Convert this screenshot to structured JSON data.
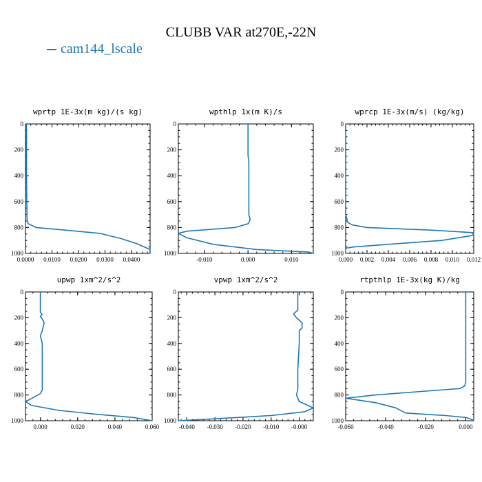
{
  "figure": {
    "title": "CLUBB VAR at270E,-22N",
    "legend": [
      {
        "name": "cam144_lscale",
        "color": "#1f77b4"
      }
    ]
  },
  "chart_data": [
    {
      "type": "line",
      "title": "wprtp  1E-3x(m kg)/(s kg)",
      "xlim": [
        0,
        0.047
      ],
      "ylim": [
        1000,
        0
      ],
      "x_ticks": [
        "0.0000",
        "0.0100",
        "0.0200",
        "0.0300",
        "0.0400"
      ],
      "x_tick_values": [
        0,
        0.01,
        0.02,
        0.03,
        0.04
      ],
      "y_ticks": [
        "0",
        "200",
        "400",
        "600",
        "800",
        "1000"
      ],
      "series": [
        {
          "name": "cam144_lscale",
          "color": "#1f77b4",
          "points": [
            [
              0.0004,
              0
            ],
            [
              0.0004,
              200
            ],
            [
              0.0004,
              400
            ],
            [
              0.0005,
              600
            ],
            [
              0.0006,
              740
            ],
            [
              0.001,
              770
            ],
            [
              0.004,
              800
            ],
            [
              0.015,
              820
            ],
            [
              0.028,
              845
            ],
            [
              0.036,
              885
            ],
            [
              0.042,
              925
            ],
            [
              0.047,
              970
            ],
            [
              0.047,
              1000
            ]
          ]
        }
      ]
    },
    {
      "type": "line",
      "title": "wpthlp  1x(m K)/s",
      "xlim": [
        -0.016,
        0.015
      ],
      "ylim": [
        1000,
        0
      ],
      "x_ticks": [
        "-0.010",
        "0.000",
        "0.010"
      ],
      "x_tick_values": [
        -0.01,
        0,
        0.01
      ],
      "y_ticks": [
        "0",
        "200",
        "400",
        "600",
        "800",
        "1000"
      ],
      "series": [
        {
          "name": "cam144_lscale",
          "color": "#1f77b4",
          "points": [
            [
              0.0,
              0
            ],
            [
              0.0,
              100
            ],
            [
              0.0,
              180
            ],
            [
              0.0,
              240
            ],
            [
              0.0002,
              300
            ],
            [
              0.0002,
              420
            ],
            [
              0.0002,
              600
            ],
            [
              0.0002,
              700
            ],
            [
              0.0005,
              740
            ],
            [
              0.0001,
              770
            ],
            [
              -0.003,
              800
            ],
            [
              -0.01,
              818
            ],
            [
              -0.014,
              828
            ],
            [
              -0.016,
              845
            ],
            [
              -0.014,
              880
            ],
            [
              -0.008,
              930
            ],
            [
              0.002,
              970
            ],
            [
              0.014,
              990
            ],
            [
              0.015,
              1000
            ]
          ]
        }
      ]
    },
    {
      "type": "line",
      "title": "wprcp  1E-3x(m/s) (kg/kg)",
      "xlim": [
        0,
        0.012
      ],
      "ylim": [
        1000,
        0
      ],
      "x_ticks": [
        "0.000",
        "0.002",
        "0.004",
        "0.006",
        "0.008",
        "0.010",
        "0.012"
      ],
      "x_tick_values": [
        0,
        0.002,
        0.004,
        0.006,
        0.008,
        0.01,
        0.012
      ],
      "y_ticks": [
        "0",
        "200",
        "400",
        "600",
        "800",
        "1000"
      ],
      "series": [
        {
          "name": "cam144_lscale",
          "color": "#1f77b4",
          "points": [
            [
              0,
              0
            ],
            [
              0,
              600
            ],
            [
              0,
              700
            ],
            [
              0.0002,
              760
            ],
            [
              0.0006,
              780
            ],
            [
              0.002,
              800
            ],
            [
              0.008,
              820
            ],
            [
              0.012,
              840
            ],
            [
              0.012,
              860
            ],
            [
              0.009,
              900
            ],
            [
              0.004,
              930
            ],
            [
              0.0008,
              950
            ],
            [
              0,
              960
            ],
            [
              0,
              1000
            ]
          ]
        }
      ]
    },
    {
      "type": "line",
      "title": "upwp  1xm^2/s^2",
      "xlim": [
        -0.008,
        0.06
      ],
      "ylim": [
        1000,
        0
      ],
      "x_ticks": [
        "0.000",
        "0.020",
        "0.040",
        "0.060"
      ],
      "x_tick_values": [
        0,
        0.02,
        0.04,
        0.06
      ],
      "y_ticks": [
        "0",
        "200",
        "400",
        "600",
        "800",
        "1000"
      ],
      "series": [
        {
          "name": "cam144_lscale",
          "color": "#1f77b4",
          "points": [
            [
              0,
              0
            ],
            [
              0,
              160
            ],
            [
              0.001,
              175
            ],
            [
              0,
              190
            ],
            [
              0.001,
              210
            ],
            [
              0.002,
              240
            ],
            [
              0.001,
              300
            ],
            [
              0,
              340
            ],
            [
              0.001,
              400
            ],
            [
              0.001,
              600
            ],
            [
              0.001,
              760
            ],
            [
              0,
              790
            ],
            [
              -0.005,
              830
            ],
            [
              -0.008,
              850
            ],
            [
              -0.005,
              880
            ],
            [
              0.01,
              920
            ],
            [
              0.03,
              950
            ],
            [
              0.05,
              975
            ],
            [
              0.06,
              1000
            ]
          ]
        }
      ]
    },
    {
      "type": "line",
      "title": "vpwp  1xm^2/s^2",
      "xlim": [
        -0.043,
        0.005
      ],
      "ylim": [
        1000,
        0
      ],
      "x_ticks": [
        "-0.040",
        "-0.030",
        "-0.020",
        "-0.010",
        "-0.000"
      ],
      "x_tick_values": [
        -0.04,
        -0.03,
        -0.02,
        -0.01,
        0
      ],
      "y_ticks": [
        "0",
        "200",
        "400",
        "600",
        "800",
        "1000"
      ],
      "series": [
        {
          "name": "cam144_lscale",
          "color": "#1f77b4",
          "points": [
            [
              -0.0005,
              0
            ],
            [
              -0.0005,
              140
            ],
            [
              -0.002,
              170
            ],
            [
              -0.001,
              200
            ],
            [
              0,
              220
            ],
            [
              0.001,
              240
            ],
            [
              0.001,
              280
            ],
            [
              0,
              300
            ],
            [
              0,
              400
            ],
            [
              -0.0005,
              600
            ],
            [
              -0.0005,
              760
            ],
            [
              -0.001,
              800
            ],
            [
              0,
              850
            ],
            [
              0.003,
              880
            ],
            [
              0.005,
              900
            ],
            [
              0.002,
              930
            ],
            [
              -0.01,
              960
            ],
            [
              -0.03,
              985
            ],
            [
              -0.043,
              1000
            ]
          ]
        }
      ]
    },
    {
      "type": "line",
      "title": "rtpthlp  1E-3x(kg K)/kg",
      "xlim": [
        -0.06,
        0.004
      ],
      "ylim": [
        1000,
        0
      ],
      "x_ticks": [
        "-0.060",
        "-0.040",
        "-0.020",
        "0.000"
      ],
      "x_tick_values": [
        -0.06,
        -0.04,
        -0.02,
        0
      ],
      "y_ticks": [
        "0",
        "200",
        "400",
        "600",
        "800",
        "1000"
      ],
      "series": [
        {
          "name": "cam144_lscale",
          "color": "#1f77b4",
          "points": [
            [
              0,
              0
            ],
            [
              0,
              200
            ],
            [
              0,
              400
            ],
            [
              0,
              600
            ],
            [
              0,
              700
            ],
            [
              -0.0005,
              730
            ],
            [
              -0.003,
              750
            ],
            [
              -0.02,
              770
            ],
            [
              -0.045,
              800
            ],
            [
              -0.06,
              825
            ],
            [
              -0.045,
              860
            ],
            [
              -0.035,
              900
            ],
            [
              -0.03,
              940
            ],
            [
              -0.01,
              960
            ],
            [
              0,
              975
            ],
            [
              0.003,
              990
            ],
            [
              0.004,
              1000
            ]
          ]
        }
      ]
    }
  ]
}
